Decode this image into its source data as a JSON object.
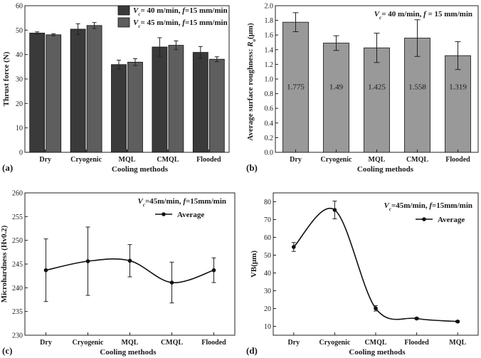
{
  "chart_data": [
    {
      "panel_label": "(a)",
      "type": "bar",
      "xlabel": "Cooling methods",
      "ylabel": "Thrust force (N)",
      "ylim": [
        0,
        60
      ],
      "yticks": [
        0,
        10,
        20,
        30,
        40,
        50,
        60
      ],
      "categories": [
        "Dry",
        "Cryogenic",
        "MQL",
        "CMQL",
        "Flooded"
      ],
      "series": [
        {
          "name": "V_c= 40 m/min, f=15 mm/min",
          "legend": {
            "v": "V",
            "sub": "c",
            "mid": "= 40 m/min, ",
            "f": "f",
            "rest": "=15 mm/min"
          },
          "color": "#3a3a3a",
          "values": [
            48.8,
            50.4,
            35.9,
            43.1,
            40.9
          ],
          "errors": [
            0.5,
            2.2,
            1.8,
            3.8,
            2.4
          ]
        },
        {
          "name": "V_c= 45 m/min, f=15 mm/min",
          "legend": {
            "v": "V",
            "sub": "c",
            "mid": "= 45 m/min, ",
            "f": "f",
            "rest": "=15 mm/min"
          },
          "color": "#5e5e5e",
          "values": [
            48.1,
            51.9,
            36.9,
            43.8,
            38.1
          ],
          "errors": [
            0.4,
            1.2,
            1.4,
            1.8,
            1.0
          ]
        }
      ]
    },
    {
      "panel_label": "(b)",
      "type": "bar",
      "xlabel": "Cooling methods",
      "ylabel": "Average surface roughness: ",
      "ylabel_sym": {
        "v": "R",
        "sub": "a",
        "unit": "(μm)"
      },
      "annotation": {
        "v": "V",
        "sub": "c",
        "mid": "= 40 m/min, ",
        "f": "f",
        "rest": " = 15 mm/min"
      },
      "ylim": [
        0,
        2.0
      ],
      "yticks": [
        "0.0",
        "0.2",
        "0.4",
        "0.6",
        "0.8",
        "1.0",
        "1.2",
        "1.4",
        "1.6",
        "1.8",
        "2.0"
      ],
      "categories": [
        "Dry",
        "Cryogenic",
        "MQL",
        "CMQL",
        "Flooded"
      ],
      "color": "#999999",
      "values": [
        1.775,
        1.49,
        1.425,
        1.558,
        1.319
      ],
      "value_labels": [
        "1.775",
        "1.49",
        "1.425",
        "1.558",
        "1.319"
      ],
      "errors": [
        0.13,
        0.1,
        0.2,
        0.25,
        0.19
      ]
    },
    {
      "panel_label": "(c)",
      "type": "line",
      "xlabel": "Cooling methods",
      "ylabel": "Microhardness (Hv0.2)",
      "annotation": {
        "v": "V",
        "sub": "c",
        "mid": "=45m/min, ",
        "f": "f",
        "rest": "=15mm/min"
      },
      "legend": "Average",
      "ylim": [
        230,
        260
      ],
      "yticks": [
        230,
        235,
        240,
        245,
        250,
        255,
        260
      ],
      "categories": [
        "Dry",
        "Cryogenic",
        "MQL",
        "CMQL",
        "Flooded"
      ],
      "values": [
        243.7,
        245.6,
        245.7,
        241.1,
        243.7
      ],
      "errors": [
        6.6,
        7.2,
        3.4,
        4.3,
        2.6
      ]
    },
    {
      "panel_label": "(d)",
      "type": "line",
      "xlabel": "Cooling methods",
      "ylabel": "VB(μm)",
      "annotation": {
        "v": "V",
        "sub": "c",
        "mid": "=45m/min, ",
        "f": "f",
        "rest": "=15mm/min"
      },
      "legend": "Average",
      "ylim": [
        5,
        85
      ],
      "yticks": [
        10,
        20,
        30,
        40,
        50,
        60,
        70,
        80
      ],
      "categories": [
        "Dry",
        "Cryogenic",
        "CMQL",
        "Flooded",
        "MQL"
      ],
      "values": [
        54.6,
        75.4,
        20.1,
        14.4,
        12.7
      ],
      "errors": [
        2.5,
        5.0,
        1.5,
        0.5,
        0.5
      ]
    }
  ]
}
